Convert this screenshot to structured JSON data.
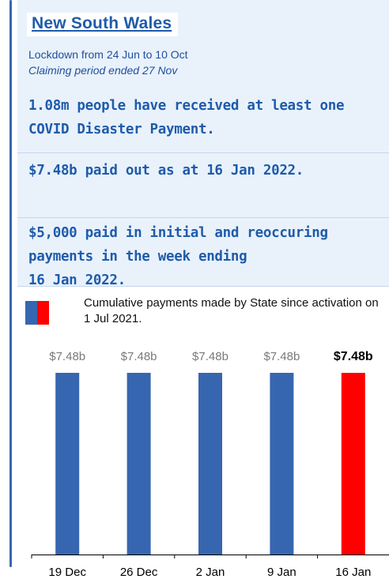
{
  "panel": {
    "title": "New South Wales",
    "lockdown": "Lockdown from 24 Jun to 10 Oct",
    "claiming": "Claiming period ended 27 Nov",
    "stats": [
      "1.08m people have received at least one COVID Disaster Payment.",
      "$7.48b paid out as at 16 Jan 2022.",
      "$5,000 paid in initial and reoccuring payments in the week ending"
    ],
    "stat3_line3": "16 Jan 2022."
  },
  "legend": {
    "text": "Cumulative payments made by State since activation on 1 Jul 2021.",
    "colors": [
      "#3766b0",
      "#ff0000"
    ]
  },
  "chart_data": {
    "type": "bar",
    "categories": [
      "19 Dec",
      "26 Dec",
      "2 Jan",
      "9 Jan",
      "16 Jan"
    ],
    "values": [
      7.48,
      7.48,
      7.48,
      7.48,
      7.48
    ],
    "value_labels": [
      "$7.48b",
      "$7.48b",
      "$7.48b",
      "$7.48b",
      "$7.48b"
    ],
    "highlight_index": 4,
    "colors": {
      "bar": "#3766b0",
      "highlight": "#ff0000",
      "axis": "#000000"
    },
    "title": "",
    "xlabel": "",
    "ylabel": "",
    "grid": false
  }
}
